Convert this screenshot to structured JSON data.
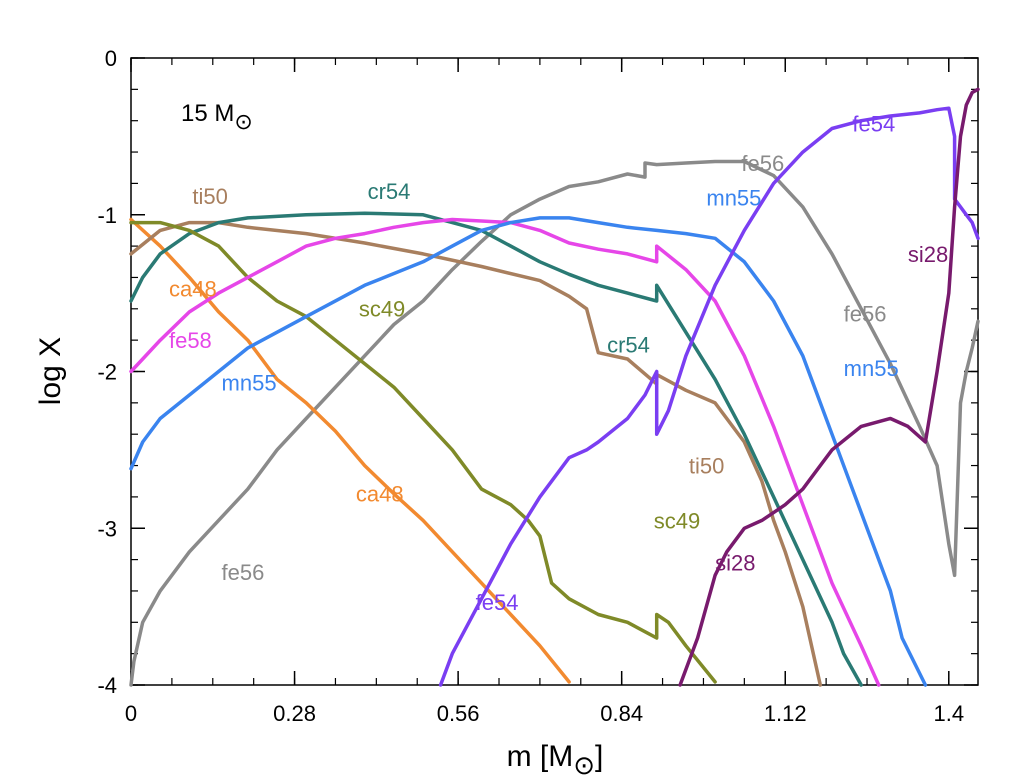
{
  "chart_data": {
    "type": "line",
    "xlabel": "m [M",
    "xlabel_sub": "⊙",
    "xlabel_end": "]",
    "ylabel": "log X",
    "annotation": {
      "text": "15 M",
      "symbol": "⊙"
    },
    "xlim": [
      0,
      1.45
    ],
    "ylim": [
      -4,
      0
    ],
    "xticks": [
      0,
      0.28,
      0.56,
      0.84,
      1.12,
      1.4
    ],
    "xtick_labels": [
      "0",
      "0.28",
      "0.56",
      "0.84",
      "1.12",
      "1.4"
    ],
    "yticks": [
      0,
      -1,
      -2,
      -3,
      -4
    ],
    "ytick_labels": [
      "0",
      "-1",
      "-2",
      "-3",
      "-4"
    ],
    "grid": false,
    "series": [
      {
        "name": "fe56",
        "color": "#8a8a8a",
        "labels": [
          {
            "text": "fe56",
            "x": 0.155,
            "y": -3.33
          },
          {
            "text": "fe56",
            "x": 1.045,
            "y": -0.72
          },
          {
            "text": "fe56",
            "x": 1.22,
            "y": -1.68
          }
        ],
        "x": [
          0.0,
          0.005,
          0.02,
          0.05,
          0.1,
          0.15,
          0.2,
          0.25,
          0.3,
          0.35,
          0.4,
          0.45,
          0.5,
          0.55,
          0.6,
          0.65,
          0.7,
          0.75,
          0.8,
          0.85,
          0.88,
          0.88,
          0.9,
          0.95,
          1.0,
          1.05,
          1.1,
          1.15,
          1.2,
          1.25,
          1.3,
          1.35,
          1.38,
          1.4,
          1.41,
          1.42,
          1.43,
          1.44,
          1.45
        ],
        "y": [
          -4.0,
          -3.85,
          -3.6,
          -3.4,
          -3.15,
          -2.95,
          -2.75,
          -2.5,
          -2.3,
          -2.1,
          -1.9,
          -1.7,
          -1.55,
          -1.35,
          -1.17,
          -1.0,
          -0.9,
          -0.82,
          -0.79,
          -0.74,
          -0.76,
          -0.67,
          -0.68,
          -0.67,
          -0.66,
          -0.66,
          -0.75,
          -0.95,
          -1.25,
          -1.6,
          -1.95,
          -2.35,
          -2.6,
          -3.1,
          -3.3,
          -2.2,
          -2.0,
          -1.85,
          -1.68
        ]
      },
      {
        "name": "ca48",
        "color": "#f28a30",
        "labels": [
          {
            "text": "ca48",
            "x": 0.065,
            "y": -1.52
          },
          {
            "text": "ca48",
            "x": 0.385,
            "y": -2.83
          }
        ],
        "x": [
          0.0,
          0.05,
          0.1,
          0.15,
          0.2,
          0.25,
          0.3,
          0.35,
          0.4,
          0.45,
          0.5,
          0.55,
          0.6,
          0.65,
          0.7,
          0.75
        ],
        "y": [
          -1.03,
          -1.2,
          -1.4,
          -1.62,
          -1.8,
          -2.05,
          -2.2,
          -2.38,
          -2.6,
          -2.78,
          -2.95,
          -3.15,
          -3.35,
          -3.55,
          -3.75,
          -3.98
        ]
      },
      {
        "name": "ti50",
        "color": "#a87f5e",
        "labels": [
          {
            "text": "ti50",
            "x": 0.105,
            "y": -0.93
          },
          {
            "text": "ti50",
            "x": 0.955,
            "y": -2.65
          }
        ],
        "x": [
          0.0,
          0.05,
          0.1,
          0.15,
          0.2,
          0.3,
          0.4,
          0.5,
          0.6,
          0.7,
          0.75,
          0.78,
          0.8,
          0.85,
          0.9,
          0.9,
          0.95,
          1.0,
          1.05,
          1.08,
          1.1,
          1.12,
          1.15,
          1.18
        ],
        "y": [
          -1.25,
          -1.1,
          -1.05,
          -1.05,
          -1.08,
          -1.12,
          -1.18,
          -1.25,
          -1.33,
          -1.42,
          -1.52,
          -1.6,
          -1.88,
          -1.92,
          -2.08,
          -2.02,
          -2.12,
          -2.2,
          -2.45,
          -2.7,
          -2.95,
          -3.15,
          -3.5,
          -4.0
        ]
      },
      {
        "name": "cr54",
        "color": "#2a7a74",
        "labels": [
          {
            "text": "cr54",
            "x": 0.405,
            "y": -0.9
          },
          {
            "text": "cr54",
            "x": 0.815,
            "y": -1.88
          }
        ],
        "x": [
          0.0,
          0.02,
          0.05,
          0.1,
          0.15,
          0.2,
          0.3,
          0.4,
          0.5,
          0.55,
          0.6,
          0.65,
          0.7,
          0.75,
          0.8,
          0.85,
          0.9,
          0.9,
          0.95,
          1.0,
          1.05,
          1.1,
          1.15,
          1.2,
          1.22,
          1.25
        ],
        "y": [
          -1.55,
          -1.4,
          -1.25,
          -1.12,
          -1.05,
          -1.02,
          -1.0,
          -0.99,
          -1.0,
          -1.05,
          -1.1,
          -1.2,
          -1.3,
          -1.38,
          -1.45,
          -1.5,
          -1.55,
          -1.45,
          -1.75,
          -2.05,
          -2.4,
          -2.8,
          -3.2,
          -3.6,
          -3.8,
          -4.0
        ]
      },
      {
        "name": "sc49",
        "color": "#7f8a28",
        "labels": [
          {
            "text": "sc49",
            "x": 0.39,
            "y": -1.65
          },
          {
            "text": "sc49",
            "x": 0.895,
            "y": -3.0
          }
        ],
        "x": [
          0.0,
          0.05,
          0.1,
          0.15,
          0.2,
          0.25,
          0.3,
          0.35,
          0.4,
          0.45,
          0.5,
          0.55,
          0.6,
          0.65,
          0.68,
          0.7,
          0.72,
          0.75,
          0.8,
          0.85,
          0.9,
          0.9,
          0.92,
          0.95,
          1.0
        ],
        "y": [
          -1.05,
          -1.05,
          -1.1,
          -1.2,
          -1.4,
          -1.55,
          -1.65,
          -1.8,
          -1.95,
          -2.1,
          -2.3,
          -2.5,
          -2.75,
          -2.85,
          -2.95,
          -3.05,
          -3.35,
          -3.45,
          -3.55,
          -3.6,
          -3.7,
          -3.55,
          -3.6,
          -3.75,
          -3.98
        ]
      },
      {
        "name": "fe58",
        "color": "#e646e8",
        "labels": [
          {
            "text": "fe58",
            "x": 0.065,
            "y": -1.85
          }
        ],
        "x": [
          0.0,
          0.02,
          0.05,
          0.1,
          0.15,
          0.2,
          0.25,
          0.3,
          0.35,
          0.4,
          0.45,
          0.5,
          0.55,
          0.6,
          0.65,
          0.7,
          0.75,
          0.8,
          0.85,
          0.9,
          0.9,
          0.95,
          1.0,
          1.05,
          1.1,
          1.15,
          1.2,
          1.25,
          1.28
        ],
        "y": [
          -2.0,
          -1.92,
          -1.8,
          -1.62,
          -1.5,
          -1.4,
          -1.3,
          -1.2,
          -1.15,
          -1.12,
          -1.08,
          -1.05,
          -1.03,
          -1.04,
          -1.05,
          -1.1,
          -1.18,
          -1.22,
          -1.25,
          -1.3,
          -1.2,
          -1.35,
          -1.55,
          -1.9,
          -2.35,
          -2.85,
          -3.35,
          -3.75,
          -4.0
        ]
      },
      {
        "name": "mn55",
        "color": "#3a84ef",
        "labels": [
          {
            "text": "mn55",
            "x": 0.155,
            "y": -2.12
          },
          {
            "text": "mn55",
            "x": 0.985,
            "y": -0.94
          },
          {
            "text": "mn55",
            "x": 1.22,
            "y": -2.03
          }
        ],
        "x": [
          0.0,
          0.02,
          0.05,
          0.1,
          0.15,
          0.2,
          0.3,
          0.4,
          0.5,
          0.55,
          0.6,
          0.65,
          0.7,
          0.75,
          0.8,
          0.85,
          0.9,
          0.95,
          1.0,
          1.05,
          1.1,
          1.15,
          1.2,
          1.25,
          1.3,
          1.32,
          1.36
        ],
        "y": [
          -2.62,
          -2.45,
          -2.3,
          -2.15,
          -2.0,
          -1.85,
          -1.65,
          -1.45,
          -1.3,
          -1.2,
          -1.1,
          -1.05,
          -1.02,
          -1.02,
          -1.05,
          -1.08,
          -1.1,
          -1.12,
          -1.15,
          -1.3,
          -1.55,
          -1.9,
          -2.4,
          -2.9,
          -3.4,
          -3.7,
          -4.0
        ]
      },
      {
        "name": "fe54",
        "color": "#7a3ef2",
        "labels": [
          {
            "text": "fe54",
            "x": 0.59,
            "y": -3.52
          },
          {
            "text": "fe54",
            "x": 1.235,
            "y": -0.47
          }
        ],
        "x": [
          0.53,
          0.55,
          0.6,
          0.65,
          0.7,
          0.75,
          0.78,
          0.8,
          0.85,
          0.88,
          0.9,
          0.9,
          0.92,
          0.95,
          1.0,
          1.05,
          1.1,
          1.15,
          1.2,
          1.25,
          1.3,
          1.35,
          1.38,
          1.4,
          1.41,
          1.41,
          1.42,
          1.43,
          1.44,
          1.45
        ],
        "y": [
          -4.0,
          -3.8,
          -3.45,
          -3.1,
          -2.8,
          -2.55,
          -2.5,
          -2.45,
          -2.3,
          -2.15,
          -2.0,
          -2.4,
          -2.25,
          -1.9,
          -1.45,
          -1.1,
          -0.8,
          -0.6,
          -0.45,
          -0.4,
          -0.37,
          -0.35,
          -0.33,
          -0.32,
          -0.5,
          -0.9,
          -0.95,
          -1.0,
          -1.05,
          -1.15
        ]
      },
      {
        "name": "si28",
        "color": "#781a6d",
        "labels": [
          {
            "text": "si28",
            "x": 1.0,
            "y": -3.27
          },
          {
            "text": "si28",
            "x": 1.33,
            "y": -1.3
          }
        ],
        "x": [
          0.94,
          0.97,
          1.0,
          1.02,
          1.05,
          1.08,
          1.1,
          1.12,
          1.15,
          1.18,
          1.2,
          1.25,
          1.3,
          1.33,
          1.36,
          1.38,
          1.4,
          1.41,
          1.42,
          1.43,
          1.44,
          1.45
        ],
        "y": [
          -4.0,
          -3.7,
          -3.3,
          -3.15,
          -3.0,
          -2.95,
          -2.9,
          -2.85,
          -2.75,
          -2.6,
          -2.5,
          -2.35,
          -2.3,
          -2.35,
          -2.45,
          -2.0,
          -1.5,
          -0.95,
          -0.5,
          -0.3,
          -0.22,
          -0.2
        ]
      }
    ]
  }
}
